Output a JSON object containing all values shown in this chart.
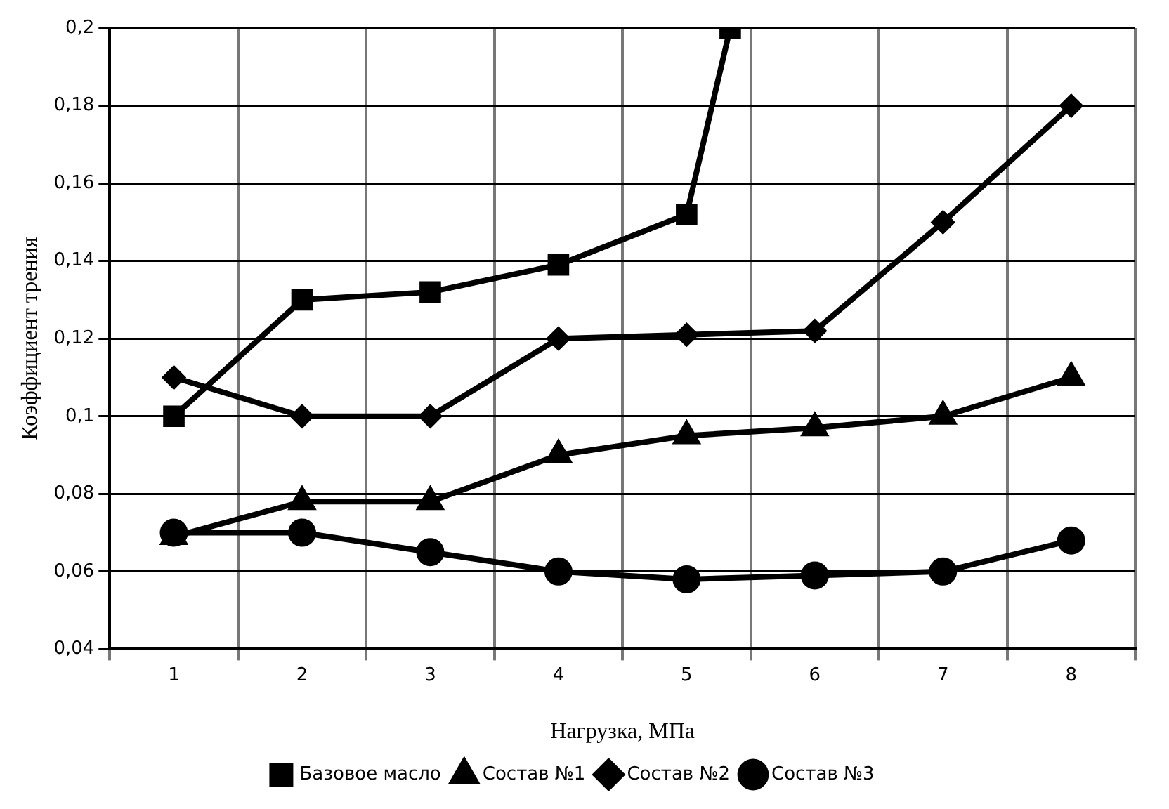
{
  "chart_data": {
    "type": "line",
    "xlabel": "Нагрузка, МПа",
    "ylabel": "Коэффициент трения",
    "x": [
      1,
      2,
      3,
      4,
      5,
      6,
      7,
      8
    ],
    "series": [
      {
        "name": "Базовое масло",
        "color": "#000000",
        "marker": "square",
        "x": [
          1,
          2,
          3,
          4,
          5,
          5.34
        ],
        "values": [
          0.1,
          0.13,
          0.132,
          0.139,
          0.152,
          0.2
        ]
      },
      {
        "name": "Состав №1",
        "color": "#000000",
        "marker": "triangle",
        "values": [
          0.069,
          0.078,
          0.078,
          0.09,
          0.095,
          0.097,
          0.1,
          0.11
        ]
      },
      {
        "name": "Состав №2",
        "color": "#000000",
        "marker": "diamond",
        "values": [
          0.11,
          0.1,
          0.1,
          0.12,
          0.121,
          0.122,
          0.15,
          0.18
        ]
      },
      {
        "name": "Состав №3",
        "color": "#000000",
        "marker": "circle",
        "values": [
          0.07,
          0.07,
          0.065,
          0.06,
          0.058,
          0.059,
          0.06,
          0.068
        ]
      }
    ],
    "xlim": [
      0.5,
      8.5
    ],
    "xticks": [
      {
        "value": 0.5,
        "label": null
      },
      1,
      {
        "value": 1.5,
        "label": null
      },
      2,
      {
        "value": 2.5,
        "label": null
      },
      3,
      {
        "value": 3.5,
        "label": null
      },
      4,
      {
        "value": 4.5,
        "label": null
      },
      5,
      {
        "value": 5.5,
        "label": null
      },
      6,
      {
        "value": 6.5,
        "label": null
      },
      7,
      {
        "value": 7.5,
        "label": null
      },
      8,
      {
        "value": 8.5,
        "label": null
      }
    ],
    "ylim": [
      0.04,
      0.2
    ],
    "yticks": [
      {
        "value": 0.04,
        "label": "0,04"
      },
      {
        "value": 0.06,
        "label": "0,06"
      },
      {
        "value": 0.08,
        "label": "0,08"
      },
      {
        "value": 0.1,
        "label": "0,1"
      },
      {
        "value": 0.12,
        "label": "0,12"
      },
      {
        "value": 0.14,
        "label": "0,14"
      },
      {
        "value": 0.16,
        "label": "0,16"
      },
      {
        "value": 0.18,
        "label": "0,18"
      },
      {
        "value": 0.2,
        "label": "0,2"
      }
    ],
    "grid": true,
    "legend": "bottom"
  }
}
